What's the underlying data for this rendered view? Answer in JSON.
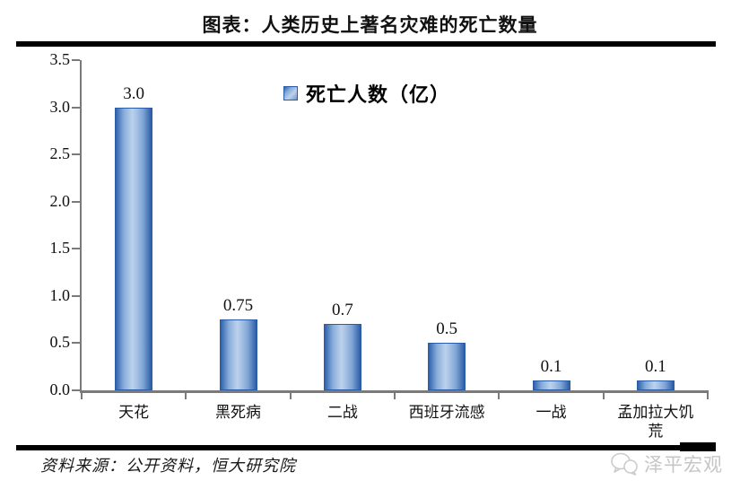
{
  "title": "图表：人类历史上著名灾难的死亡数量",
  "legend": {
    "label": "死亡人数（亿）",
    "marker_color": "#2e61ac"
  },
  "chart_data": {
    "type": "bar",
    "title": "图表：人类历史上著名灾难的死亡数量",
    "categories": [
      "天花",
      "黑死病",
      "二战",
      "西班牙流感",
      "一战",
      "孟加拉大饥荒"
    ],
    "values": [
      3.0,
      0.75,
      0.7,
      0.5,
      0.1,
      0.1
    ],
    "value_labels": [
      "3.0",
      "0.75",
      "0.7",
      "0.5",
      "0.1",
      "0.1"
    ],
    "series_name": "死亡人数（亿）",
    "xlabel": "",
    "ylabel": "",
    "ylim": [
      0,
      3.5
    ],
    "yticks": [
      "0.0",
      "0.5",
      "1.0",
      "1.5",
      "2.0",
      "2.5",
      "3.0",
      "3.5"
    ],
    "grid": false,
    "legend_position": "top-center",
    "bar_color_edge": "#2a5ca8",
    "bar_color_center": "#bcd1ec",
    "axis_color": "#7a7a7a"
  },
  "footer": {
    "source": "资料来源：公开资料，恒大研究院",
    "watermark": "泽平宏观"
  }
}
